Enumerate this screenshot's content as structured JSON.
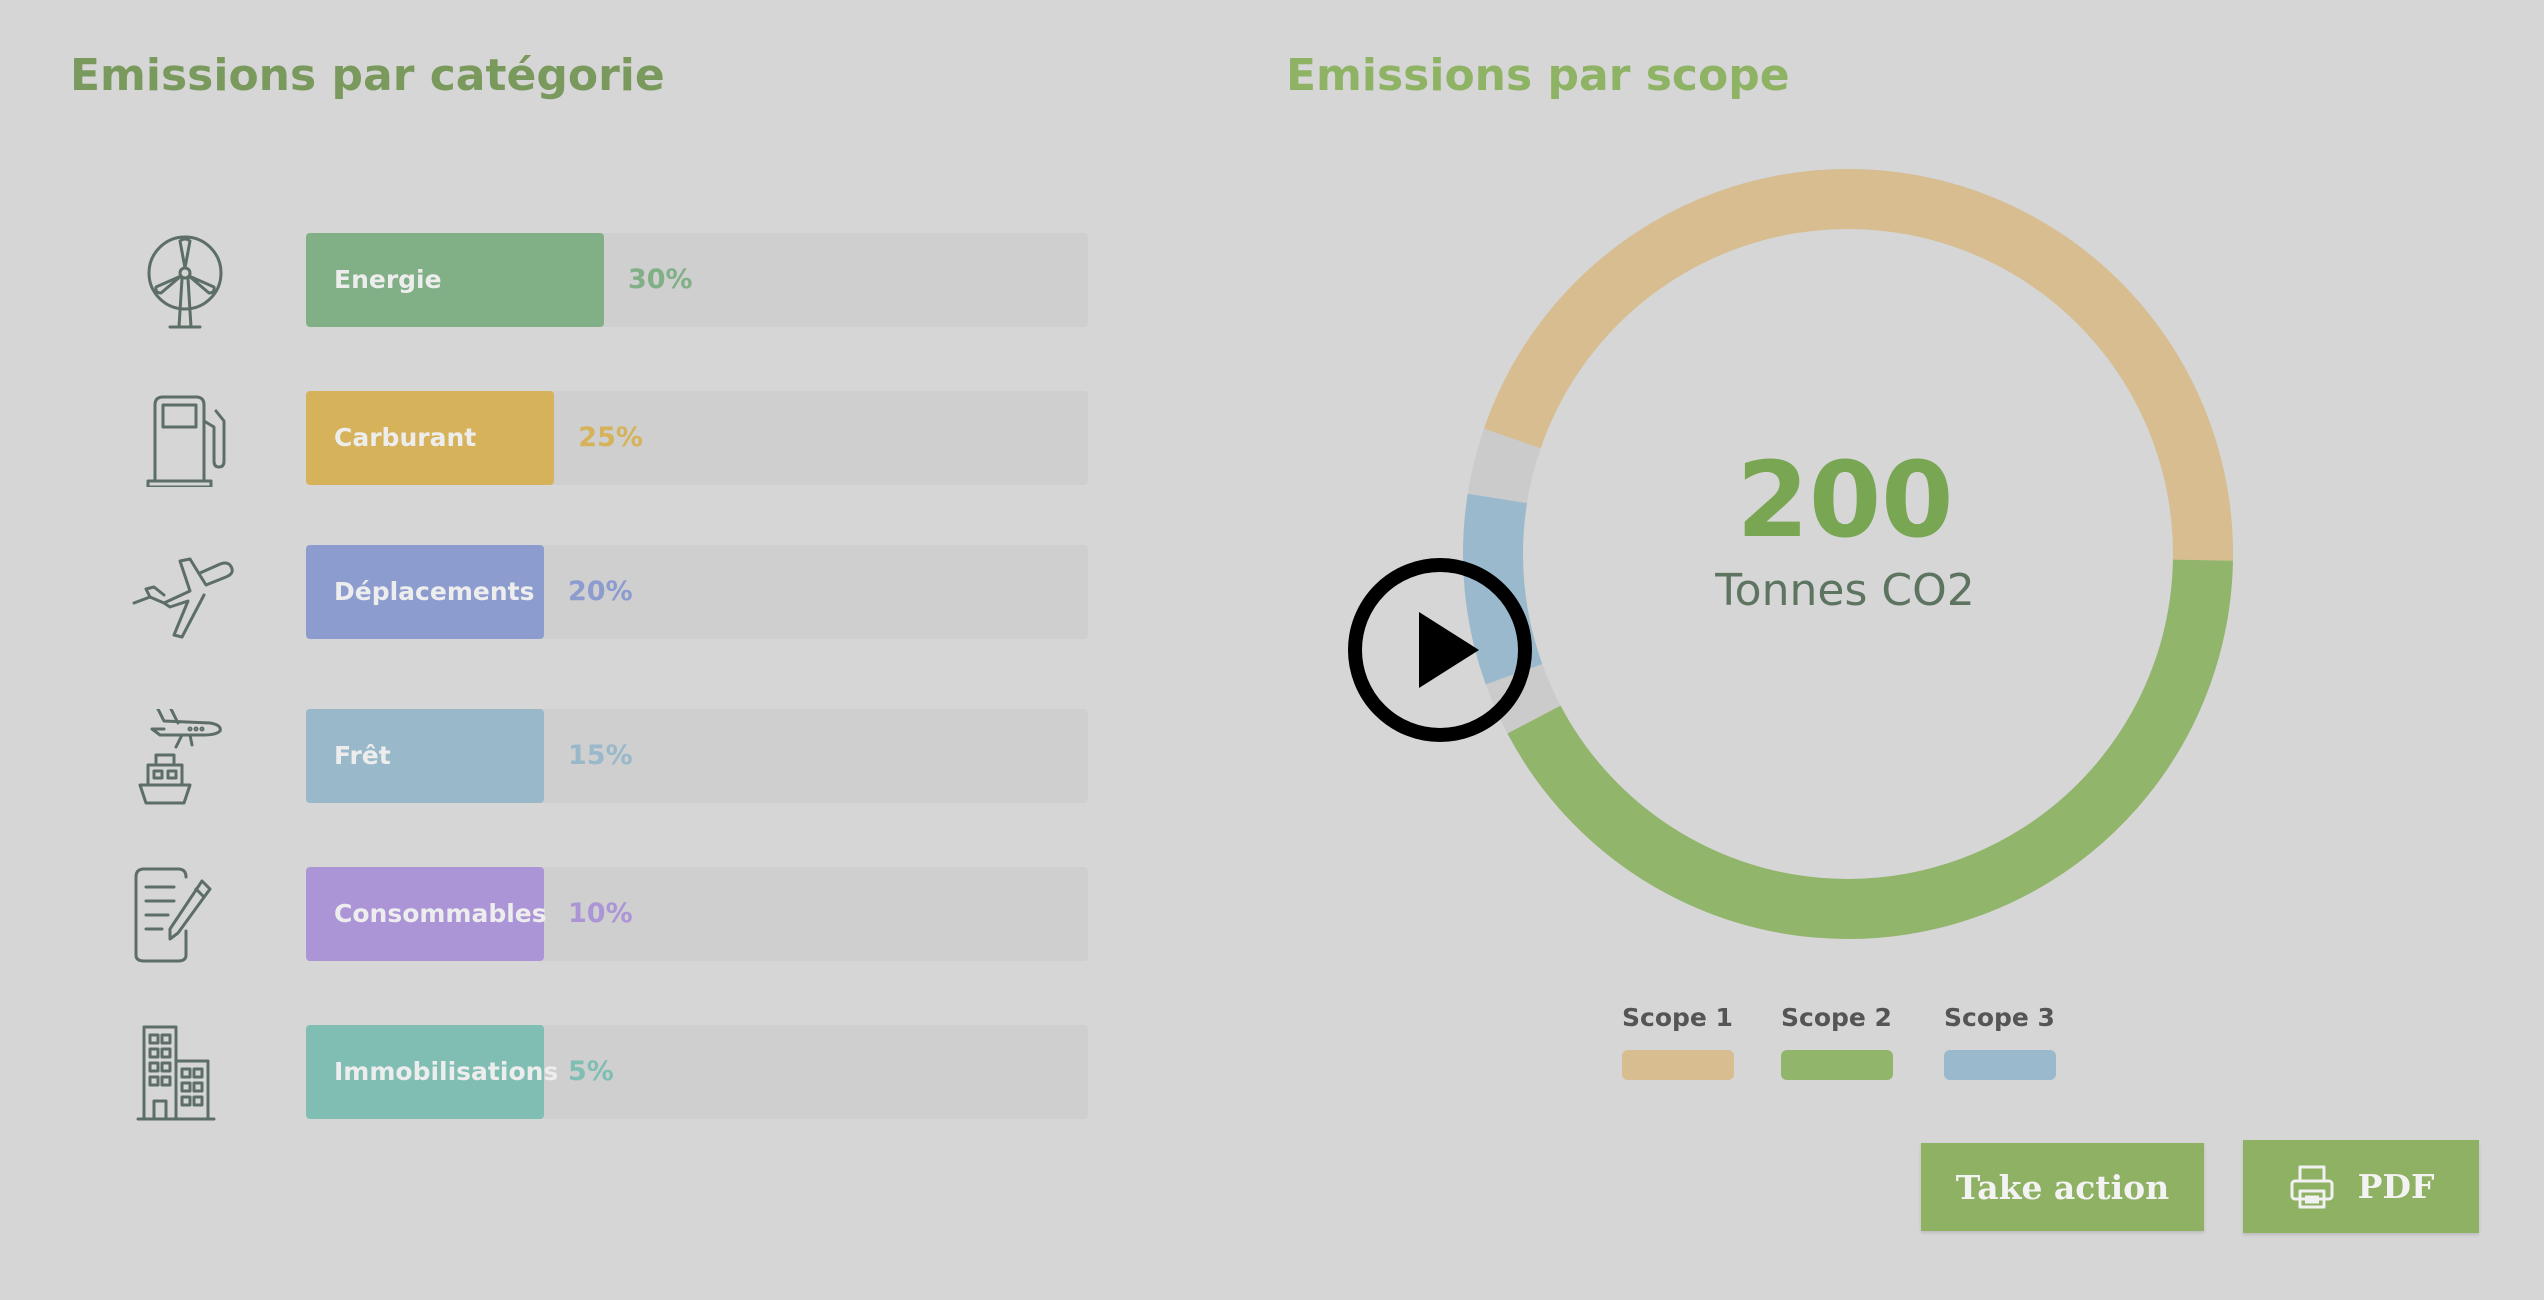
{
  "left_title": "Emissions par catégorie",
  "right_title": "Emissions par scope",
  "categories": [
    {
      "label": "Energie",
      "percent": 30,
      "percent_label": "30%",
      "color": "#81b086",
      "icon": "wind-turbine-icon"
    },
    {
      "label": "Carburant",
      "percent": 25,
      "percent_label": "25%",
      "color": "#d6b35a",
      "icon": "fuel-pump-icon"
    },
    {
      "label": "Déplacements",
      "percent": 20,
      "percent_label": "20%",
      "color": "#8c9ccf",
      "icon": "airplane-icon"
    },
    {
      "label": "Frêt",
      "percent": 15,
      "percent_label": "15%",
      "color": "#99b8c9",
      "icon": "plane-ship-freight-icon"
    },
    {
      "label": "Consommables",
      "percent": 10,
      "percent_label": "10%",
      "color": "#ab95d6",
      "icon": "document-pen-icon"
    },
    {
      "label": "Immobilisations",
      "percent": 5,
      "percent_label": "5%",
      "color": "#80beb3",
      "icon": "building-icon"
    }
  ],
  "donut": {
    "total": "200",
    "unit": "Tonnes CO2"
  },
  "chart_data": [
    {
      "type": "bar",
      "orientation": "horizontal",
      "title": "Emissions par catégorie",
      "categories": [
        "Energie",
        "Carburant",
        "Déplacements",
        "Frêt",
        "Consommables",
        "Immobilisations"
      ],
      "values": [
        30,
        25,
        20,
        15,
        10,
        5
      ],
      "unit": "%"
    },
    {
      "type": "pie",
      "style": "donut",
      "title": "Emissions par scope",
      "center_value": 200,
      "center_label": "Tonnes CO2",
      "series": [
        {
          "name": "Scope 1",
          "value": 45,
          "color": "#d7bd90"
        },
        {
          "name": "Scope 2",
          "value": 42,
          "color": "#91b56a"
        },
        {
          "name": "Scope 3",
          "value": 8,
          "color": "#9ab9cc"
        }
      ]
    }
  ],
  "legend": [
    {
      "label": "Scope 1",
      "color": "#d7bd90"
    },
    {
      "label": "Scope 2",
      "color": "#91b56a"
    },
    {
      "label": "Scope 3",
      "color": "#9ab9cc"
    }
  ],
  "buttons": {
    "take_action": "Take action",
    "pdf": "PDF"
  },
  "overlay": {
    "icon": "play-button-icon"
  }
}
